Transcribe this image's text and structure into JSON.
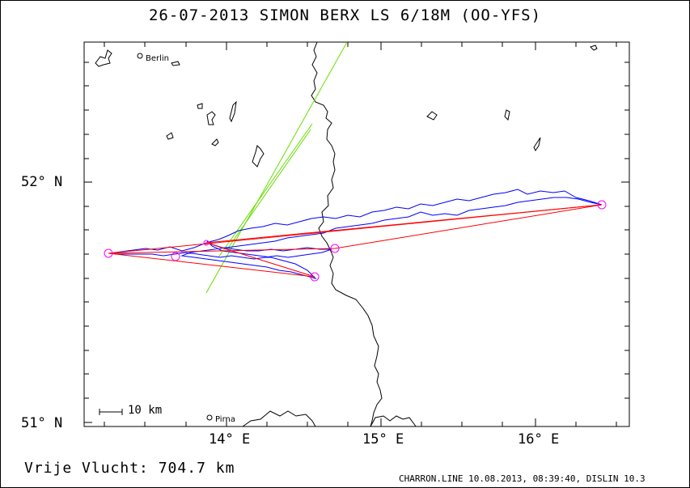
{
  "title": "26-07-2013    SIMON BERX    LS 6/18M (OO-YFS)",
  "lat_labels": [
    "52° N",
    "51° N"
  ],
  "lon_labels": [
    "14° E",
    "15° E",
    "16° E"
  ],
  "scale_bar": "10 km",
  "towns": [
    "Berlin",
    "Pirna"
  ],
  "free_flight": "Vrije Vlucht:  704.7 km",
  "footer": "CHARRON.LINE 10.08.2013, 08:39:40, DISLIN 10.3",
  "colors": {
    "track": "#0000ff",
    "task": "#ff0000",
    "waypoint": "#ff00ff",
    "airspace": "#66dd00",
    "border": "#000000"
  }
}
